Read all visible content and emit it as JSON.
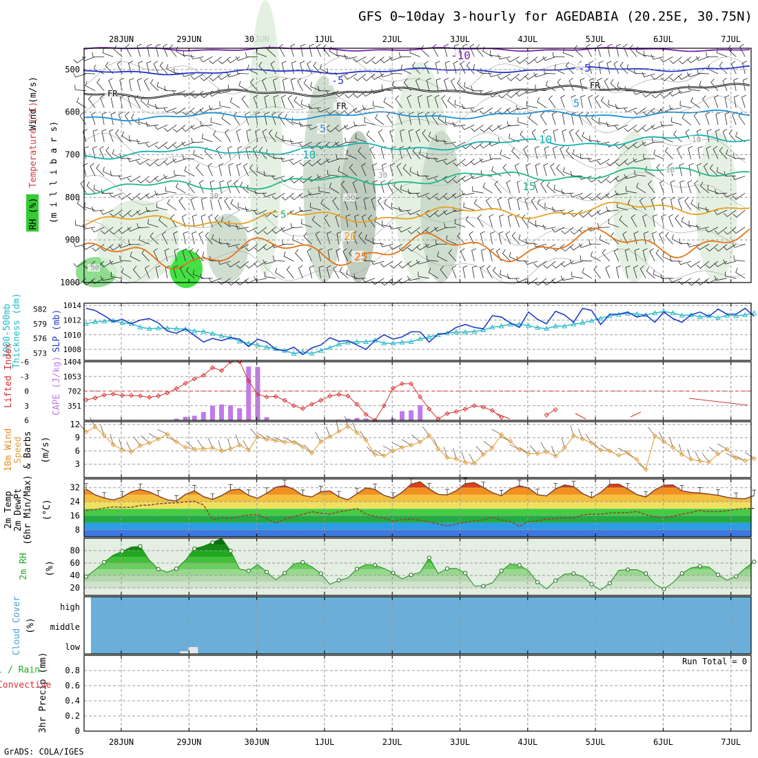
{
  "header": {
    "title": "GFS 0~10day 3-hourly for AGEDABIA (20.25E, 30.75N)"
  },
  "footer": {
    "credit": "GrADS: COLA/IGES"
  },
  "chart_data": [
    {
      "type": "contour",
      "panel": "upper-air",
      "ylabel": [
        "Wind (m/s)",
        "Temperature (°C)",
        "RH (%)",
        "(m i l l i b a r s)"
      ],
      "x_ticks": [
        "28JUN",
        "29JUN",
        "30JUN",
        "1JUL",
        "2JUL",
        "3JUL",
        "4JUL",
        "5JUL",
        "6JUL",
        "7JUL"
      ],
      "y_ticks": [
        500,
        600,
        700,
        800,
        900,
        1000
      ],
      "ylim": [
        450,
        1000
      ],
      "y_reversed": true,
      "isotherms": [
        {
          "label": "-10",
          "color": "#7a1fb4",
          "p_start": 452,
          "p_end": 453,
          "wave": 3
        },
        {
          "label": "-5",
          "color": "#2233cc",
          "p_start": 508,
          "p_end": 497,
          "wave": 4
        },
        {
          "label": "FR",
          "color": "#000000",
          "p_start": 560,
          "p_end": 542,
          "wave": 6
        },
        {
          "label": "5",
          "color": "#1a8fd8",
          "p_start": 612,
          "p_end": 603,
          "wave": 6
        },
        {
          "label": "10",
          "color": "#14b0b0",
          "p_start": 700,
          "p_end": 660,
          "wave": 8
        },
        {
          "label": "15",
          "color": "#1fb888",
          "p_start": 780,
          "p_end": 735,
          "wave": 10
        },
        {
          "label": "20",
          "color": "#e8a020",
          "p_start": 860,
          "p_end": 820,
          "wave": 12
        },
        {
          "label": "25",
          "color": "#e87010",
          "p_start": 940,
          "p_end": 900,
          "wave": 25
        }
      ],
      "contour_labels": [
        "-10",
        "-5",
        "-5",
        "FR",
        "FR",
        "FR",
        "5",
        "5",
        "10",
        "10",
        "15",
        "5",
        "20",
        "25",
        "30",
        "30",
        "30",
        "50",
        "10",
        "10"
      ]
    },
    {
      "type": "line",
      "panel": "slp-thickness",
      "ylabel_left": "1000-500mb Thickness (dm)",
      "ylabel_right": "SLP (mb)",
      "left_ticks": [
        582,
        579,
        576,
        573
      ],
      "right_ticks": [
        1014,
        1012,
        1010,
        1008
      ],
      "slp_range": [
        1006.5,
        1014.3
      ],
      "thick_range": [
        571.5,
        583.2
      ],
      "series": [
        {
          "name": "SLP (mb)",
          "color": "#1e3cc8",
          "values": [
            1013.6,
            1013.3,
            1012.6,
            1011.8,
            1012.1,
            1011.5,
            1012.0,
            1012.2,
            1011.6,
            1010.5,
            1010.2,
            1010.8,
            1009.9,
            1009.0,
            1009.5,
            1009.2,
            1009.6,
            1009.4,
            1008.4,
            1009.4,
            1009.0,
            1008.0,
            1007.8,
            1008.3,
            1007.3,
            1008.2,
            1008.6,
            1009.6,
            1009.1,
            1009.2,
            1008.6,
            1008.0,
            1009.2,
            1010.0,
            1009.4,
            1009.7,
            1010.4,
            1010.4,
            1009.0,
            1010.1,
            1010.2,
            1011.0,
            1011.4,
            1011.0,
            1010.8,
            1012.6,
            1012.4,
            1011.6,
            1011.0,
            1013.1,
            1012.1,
            1011.5,
            1013.2,
            1012.7,
            1011.7,
            1013.6,
            1013.3,
            1011.4,
            1012.8,
            1012.8,
            1013.1,
            1012.4,
            1012.7,
            1011.7,
            1013.1,
            1012.2,
            1011.7,
            1012.7,
            1013.1,
            1012.5,
            1013.5,
            1012.8,
            1012.8,
            1013.6,
            1012.5
          ]
        },
        {
          "name": "1000-500mb Thickness (dm)",
          "color": "#22b8c8",
          "values": [
            579.0,
            579.4,
            579.5,
            579.6,
            579.2,
            579.0,
            578.3,
            578.0,
            578.1,
            578.1,
            578.0,
            577.9,
            577.5,
            577.4,
            577.0,
            576.5,
            576.2,
            575.4,
            575.0,
            574.6,
            574.2,
            573.9,
            573.5,
            572.9,
            573.2,
            572.9,
            573.5,
            574.1,
            574.8,
            575.2,
            575.3,
            575.3,
            575.6,
            575.0,
            575.0,
            575.2,
            575.3,
            575.9,
            576.3,
            576.7,
            577.1,
            577.3,
            577.3,
            577.4,
            577.7,
            578.3,
            578.5,
            578.9,
            578.9,
            578.6,
            578.2,
            578.0,
            578.5,
            578.5,
            578.9,
            579.2,
            579.6,
            580.1,
            580.6,
            580.9,
            581.1,
            581.0,
            580.8,
            581.2,
            581.5,
            581.2,
            580.7,
            580.8,
            580.4,
            580.6,
            580.2,
            580.7,
            580.6,
            580.8,
            581.2
          ]
        }
      ]
    },
    {
      "type": "bar",
      "panel": "lifted-index-cape",
      "ylabel_left": "Lifted Index",
      "ylabel_right": "CAPE (J/kg)",
      "left_ticks": [
        "-6",
        "-3",
        "0",
        "3",
        "6"
      ],
      "right_ticks": [
        "1404",
        "1053",
        "702",
        "351"
      ],
      "li_range": [
        -6,
        6
      ],
      "cape_range": [
        0,
        1404
      ],
      "series": [
        {
          "name": "Lifted Index",
          "color": "#d83030",
          "values": [
            1.8,
            1.4,
            0.8,
            0.6,
            0.9,
            0.9,
            1.0,
            1.3,
            1.0,
            0.4,
            -0.5,
            -1.6,
            -2.5,
            -3.2,
            -4.8,
            -4.2,
            -6.0,
            -6.0,
            -2.1,
            0.7,
            1.2,
            1.1,
            1.9,
            3.0,
            3.6,
            2.7,
            1.9,
            1.0,
            0.7,
            1.0,
            2.7,
            4.8,
            6.0,
            3.0,
            -0.6,
            -1.5,
            -1.5,
            1.2,
            3.7,
            5.7,
            4.6,
            4.2,
            3.7,
            3.0,
            3.3,
            4.0,
            5.4,
            null,
            null,
            null,
            null,
            4.9,
            3.8,
            null,
            null,
            null,
            null,
            null,
            null,
            null,
            null,
            null,
            null,
            null,
            null,
            null,
            null,
            null,
            null,
            null,
            null,
            null,
            null,
            null,
            null
          ]
        },
        {
          "name": "CAPE (J/kg)",
          "color": "#c07ae8",
          "values": [
            0,
            0,
            0,
            0,
            0,
            0,
            0,
            0,
            0,
            0,
            40,
            85,
            110,
            200,
            350,
            380,
            360,
            290,
            1290,
            1280,
            78,
            0,
            0,
            0,
            0,
            0,
            0,
            0,
            15,
            40,
            58,
            45,
            0,
            0,
            44,
            220,
            240,
            360,
            2,
            0,
            0,
            0,
            0,
            0,
            0,
            0,
            0,
            0,
            0,
            0,
            0,
            0,
            0,
            0,
            0,
            0,
            0,
            0,
            0,
            0,
            0,
            0,
            0,
            0,
            0,
            0,
            0,
            0,
            0,
            0,
            0,
            0,
            0,
            0,
            0
          ]
        }
      ]
    },
    {
      "type": "line",
      "panel": "10m-wind",
      "ylabel": "10m Wind Speed & Barbs (m/s)",
      "y_ticks": [
        12,
        9,
        6,
        3
      ],
      "ylim": [
        0,
        12.6
      ],
      "series": [
        {
          "name": "Speed",
          "color": "#e0a040",
          "values": [
            10.3,
            11.4,
            9.5,
            7.4,
            6.3,
            5.8,
            7.2,
            7.8,
            8.7,
            9.8,
            8.1,
            6.8,
            6.4,
            6.5,
            6.7,
            6.0,
            6.5,
            7.3,
            6.2,
            9.2,
            8.6,
            8.3,
            8.0,
            7.9,
            6.9,
            5.5,
            8.1,
            9.2,
            10.4,
            11.5,
            10.1,
            8.5,
            5.2,
            4.9,
            6.0,
            6.8,
            7.3,
            8.0,
            9.5,
            6.5,
            4.5,
            4.2,
            3.4,
            3.2,
            5.2,
            6.7,
            9.7,
            8.2,
            6.3,
            5.4,
            5.4,
            5.8,
            4.8,
            6.7,
            9.4,
            8.7,
            7.8,
            6.2,
            6.0,
            5.0,
            5.6,
            4.1,
            1.8,
            9.4,
            8.1,
            6.8,
            5.2,
            4.1,
            3.7,
            3.5,
            5.3,
            6.4,
            4.4,
            3.8,
            4.3
          ]
        }
      ]
    },
    {
      "type": "area",
      "panel": "2m-temperature",
      "ylabel": "2m Temp 2m DewPt (6hr Min/Max) (°C)",
      "y_ticks": [
        32,
        24,
        16,
        8
      ],
      "ylim": [
        4,
        37
      ],
      "series": [
        {
          "name": "2m Temp",
          "values": [
            31.2,
            27.9,
            26.1,
            25.0,
            26.6,
            29.7,
            31.0,
            29.6,
            27.2,
            25.0,
            24.4,
            28.2,
            30.2,
            26.9,
            25.3,
            27.5,
            30.6,
            31.1,
            27.6,
            26.0,
            28.8,
            32.3,
            33.1,
            31.1,
            27.6,
            26.7,
            29.7,
            30.2,
            26.8,
            25.1,
            28.5,
            31.9,
            31.0,
            27.6,
            26.1,
            29.4,
            34.0,
            35.4,
            31.3,
            28.2,
            27.9,
            30.3,
            34.3,
            34.9,
            32.1,
            29.2,
            27.4,
            31.3,
            33.1,
            31.8,
            28.0,
            27.3,
            31.3,
            33.6,
            32.6,
            28.7,
            26.3,
            29.3,
            33.9,
            34.0,
            31.3,
            28.1,
            26.7,
            30.7,
            33.4,
            33.6,
            30.2,
            29.3,
            29.0,
            28.3,
            27.7,
            26.5,
            25.9,
            25.7,
            27.5
          ]
        },
        {
          "name": "2m DewPt",
          "values": [
            19.0,
            19.5,
            20.4,
            21.1,
            20.8,
            20.8,
            21.9,
            22.1,
            22.8,
            23.2,
            23.4,
            23.9,
            24.2,
            22.2,
            13.8,
            14.8,
            14.4,
            15.6,
            16.4,
            16.6,
            14.4,
            11.7,
            14.1,
            15.6,
            16.8,
            18.3,
            17.4,
            17.0,
            18.3,
            19.0,
            20.1,
            16.9,
            15.7,
            14.6,
            12.9,
            13.8,
            14.1,
            13.4,
            12.5,
            11.4,
            10.2,
            11.3,
            12.3,
            13.0,
            13.7,
            15.2,
            13.6,
            12.7,
            10.0,
            12.7,
            13.0,
            14.2,
            14.4,
            14.8,
            14.8,
            16.5,
            17.0,
            16.8,
            17.6,
            17.7,
            17.8,
            18.4,
            16.6,
            15.5,
            14.8,
            15.7,
            16.9,
            17.9,
            19.0,
            18.4,
            18.3,
            18.8,
            19.8,
            20.1,
            20.2
          ]
        }
      ]
    },
    {
      "type": "area",
      "panel": "2m-rh",
      "ylabel": "2m RH (%)",
      "y_ticks": [
        80,
        60,
        40,
        20
      ],
      "ylim": [
        8,
        100
      ],
      "series": [
        {
          "name": "2m RH",
          "values": [
            38.2,
            49.0,
            61.3,
            72.7,
            78.8,
            85.8,
            86.8,
            64.5,
            50.1,
            45.2,
            50.8,
            64.4,
            83.1,
            87.2,
            93.1,
            100.0,
            79.5,
            50.5,
            47.5,
            57.8,
            45.6,
            32.9,
            43.9,
            58.6,
            61.3,
            53.9,
            43.1,
            25.6,
            32.2,
            36.1,
            50.7,
            57.5,
            56.6,
            51.4,
            44.1,
            34.4,
            40.9,
            45.0,
            68.5,
            43.1,
            51.1,
            51.2,
            43.9,
            23.2,
            22.9,
            28.1,
            47.6,
            58.6,
            56.5,
            47.5,
            29.3,
            18.5,
            31.7,
            42.0,
            43.1,
            38.3,
            26.0,
            16.3,
            27.6,
            48.4,
            49.5,
            49.2,
            43.2,
            26.3,
            18.2,
            28.4,
            43.3,
            52.1,
            54.9,
            53.7,
            41.2,
            32.6,
            38.5,
            51.4,
            62.1
          ]
        }
      ]
    },
    {
      "type": "area",
      "panel": "cloud-cover",
      "ylabel": "Cloud Cover (%)",
      "y_ticks": [
        "high",
        "middle",
        "low"
      ],
      "color": "#6aaed9",
      "low_cloud_blocks": [
        1.95,
        2.05
      ]
    },
    {
      "type": "bar",
      "panel": "3hr-precip",
      "ylabel_left": [
        "3hr Precip (mm)",
        "Total / Rain",
        "Convective"
      ],
      "y_ticks": [
        "0.8",
        "0.6",
        "0.4",
        "0.2",
        "0"
      ],
      "ylim": [
        0,
        1
      ],
      "annotation": "Run Total = 0",
      "values": []
    }
  ]
}
